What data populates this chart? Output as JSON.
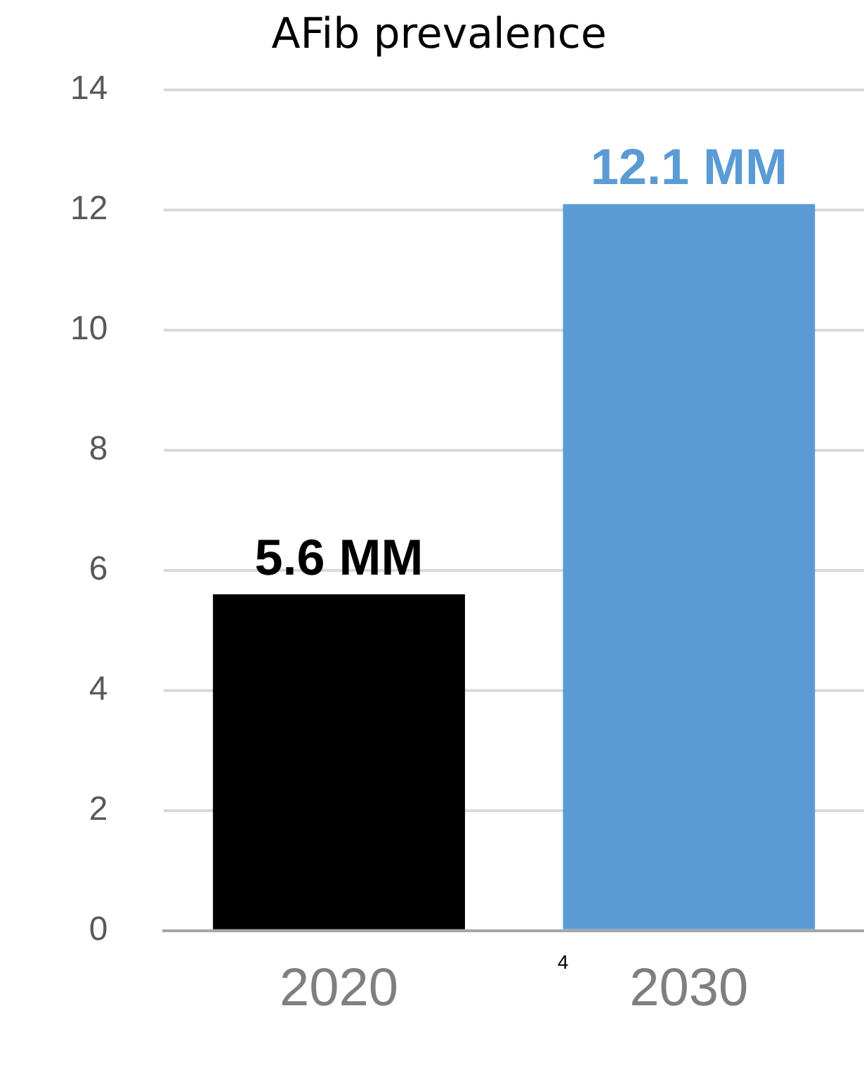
{
  "chart_data": {
    "type": "bar",
    "title": "AFib prevalence",
    "categories": [
      "2020",
      "2030"
    ],
    "values": [
      5.6,
      12.1
    ],
    "colors": [
      "#000000",
      "#5b9bd5"
    ],
    "value_labels": [
      "5.6 MM",
      "12.1 MM"
    ],
    "ylim": [
      0,
      14
    ],
    "yticks": [
      0,
      2,
      4,
      6,
      8,
      10,
      12,
      14
    ],
    "grid": "y",
    "annotations": [
      "4"
    ]
  }
}
